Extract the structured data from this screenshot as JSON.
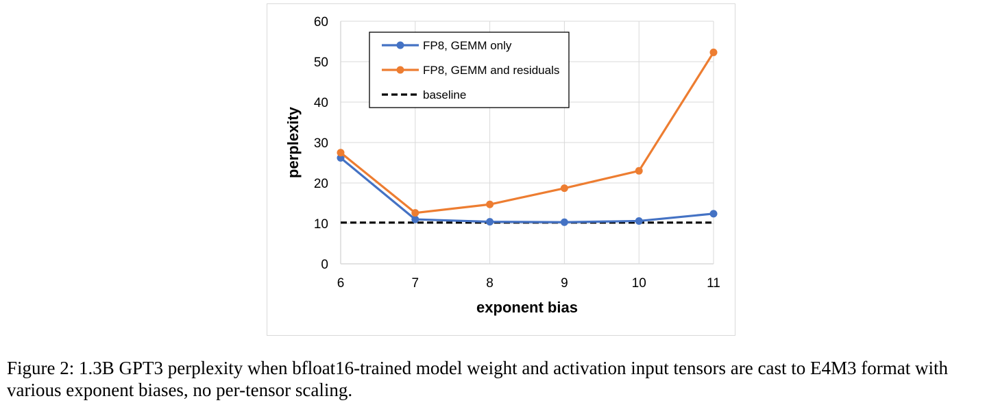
{
  "chart_data": {
    "type": "line",
    "xlabel": "exponent bias",
    "ylabel": "perplexity",
    "x": [
      6,
      7,
      8,
      9,
      10,
      11
    ],
    "xlim": [
      6,
      11
    ],
    "ylim": [
      0,
      60
    ],
    "yticks": [
      0,
      10,
      20,
      30,
      40,
      50,
      60
    ],
    "grid": true,
    "legend_position": "top-left",
    "series": [
      {
        "name": "FP8, GEMM only",
        "values": [
          26.2,
          11.0,
          10.4,
          10.3,
          10.6,
          12.4
        ],
        "color": "#4472c4",
        "style": "solid-markers"
      },
      {
        "name": "FP8, GEMM and residuals",
        "values": [
          27.5,
          12.6,
          14.7,
          18.7,
          23.0,
          52.3
        ],
        "color": "#ed7d31",
        "style": "solid-markers"
      },
      {
        "name": "baseline",
        "values": [
          10.2,
          10.2,
          10.2,
          10.2,
          10.2,
          10.2
        ],
        "color": "#000000",
        "style": "dashed"
      }
    ]
  },
  "caption": "Figure 2: 1.3B GPT3 perplexity when bfloat16-trained model weight and activation input tensors are cast to E4M3 format with various exponent biases, no per-tensor scaling."
}
